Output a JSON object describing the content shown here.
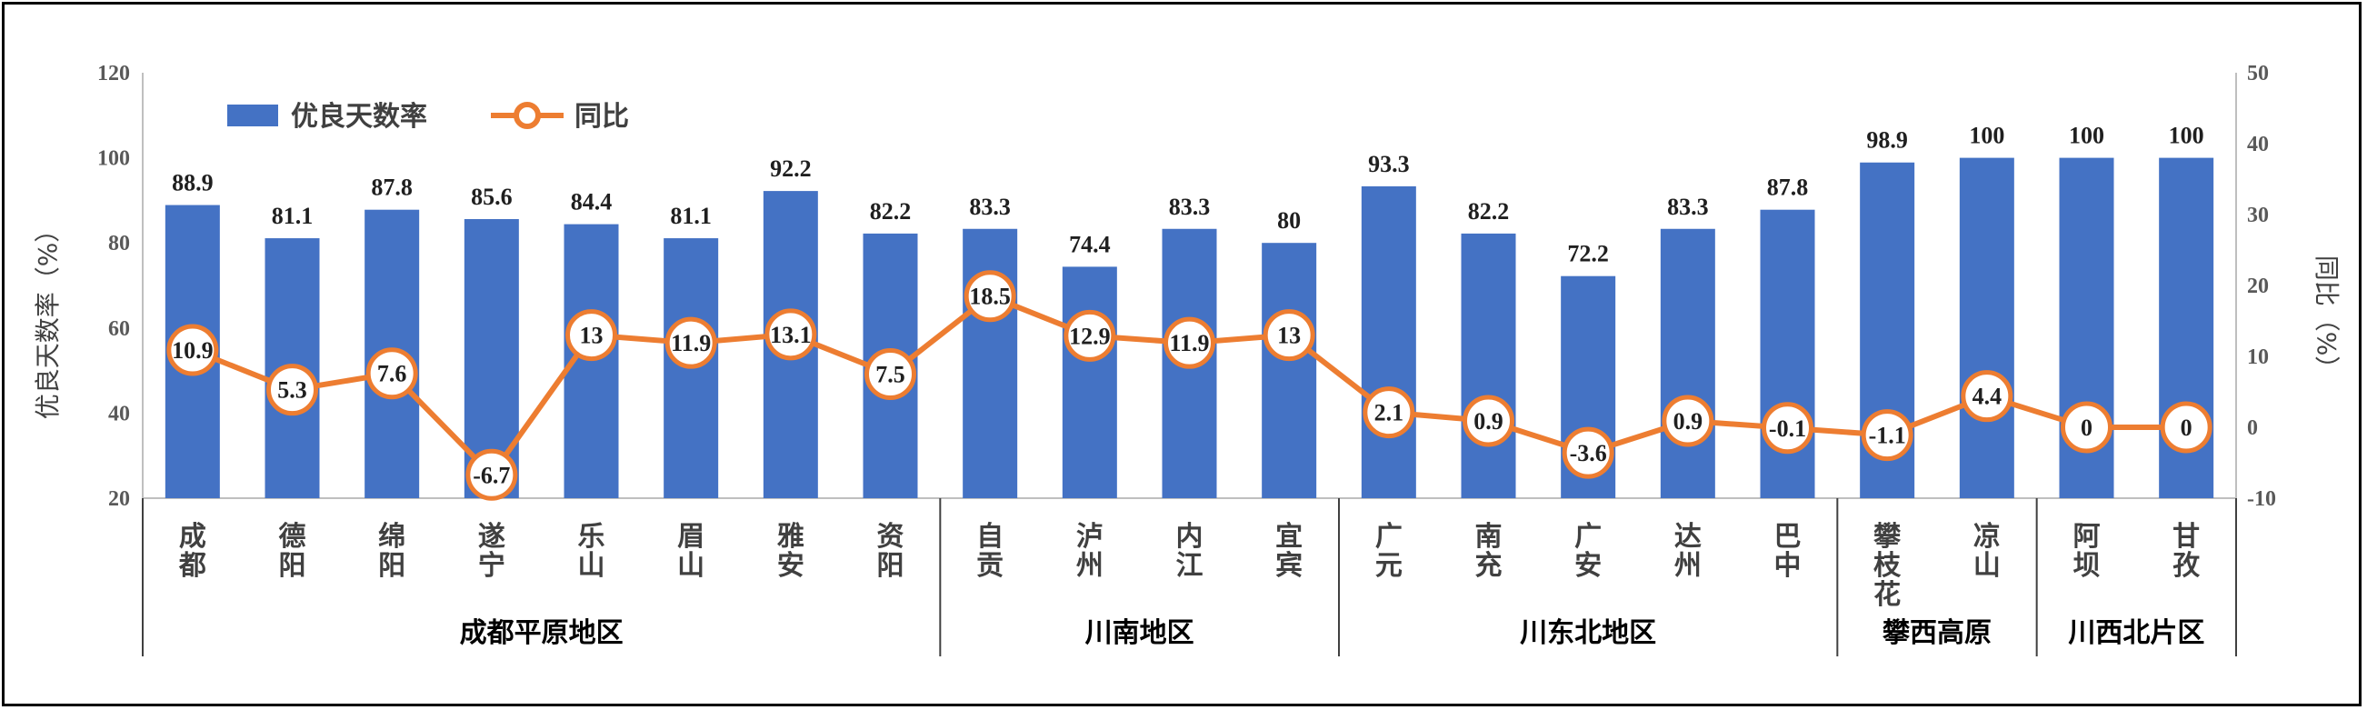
{
  "chart_data": {
    "type": "bar",
    "title": "",
    "ylabel": "优良天数率（%）",
    "y2label": "同比（%）",
    "ylim": [
      20,
      120
    ],
    "yticks": [
      20,
      40,
      60,
      80,
      100,
      120
    ],
    "y2lim": [
      -10,
      50
    ],
    "y2ticks": [
      -10,
      0,
      10,
      20,
      30,
      40,
      50
    ],
    "grid": false,
    "legend_position": "top-left",
    "categories": [
      "成都",
      "德阳",
      "绵阳",
      "遂宁",
      "乐山",
      "眉山",
      "雅安",
      "资阳",
      "自贡",
      "泸州",
      "内江",
      "宜宾",
      "广元",
      "南充",
      "广安",
      "达州",
      "巴中",
      "攀枝花",
      "凉山",
      "阿坝",
      "甘孜"
    ],
    "category_labels": [
      "成\n都",
      "德\n阳",
      "绵\n阳",
      "遂\n宁",
      "乐\n山",
      "眉\n山",
      "雅\n安",
      "资\n阳",
      "自\n贡",
      "泸\n州",
      "内\n江",
      "宜\n宾",
      "广\n元",
      "南\n充",
      "广\n安",
      "达\n州",
      "巴\n中",
      "攀\n枝\n花",
      "凉\n山",
      "阿\n坝",
      "甘\n孜"
    ],
    "groups": [
      {
        "name": "成都平原地区",
        "start": 0,
        "end": 7
      },
      {
        "name": "川南地区",
        "start": 8,
        "end": 11
      },
      {
        "name": "川东北地区",
        "start": 12,
        "end": 16
      },
      {
        "name": "攀西高原",
        "start": 17,
        "end": 18
      },
      {
        "name": "川西北片区",
        "start": 19,
        "end": 20
      }
    ],
    "series": [
      {
        "name": "优良天数率",
        "type": "bar",
        "axis": "left",
        "color": "#4472C4",
        "values": [
          88.9,
          81.1,
          87.8,
          85.6,
          84.4,
          81.1,
          92.2,
          82.2,
          83.3,
          74.4,
          83.3,
          80,
          93.3,
          82.2,
          72.2,
          83.3,
          87.8,
          98.9,
          100,
          100,
          100
        ]
      },
      {
        "name": "同比",
        "type": "line",
        "axis": "right",
        "color": "#ED7D31",
        "values": [
          10.9,
          5.3,
          7.6,
          -6.7,
          13,
          11.9,
          13.1,
          7.5,
          18.5,
          12.9,
          11.9,
          13,
          2.1,
          0.9,
          -3.6,
          0.9,
          -0.1,
          -1.1,
          4.4,
          0,
          0
        ]
      }
    ]
  }
}
